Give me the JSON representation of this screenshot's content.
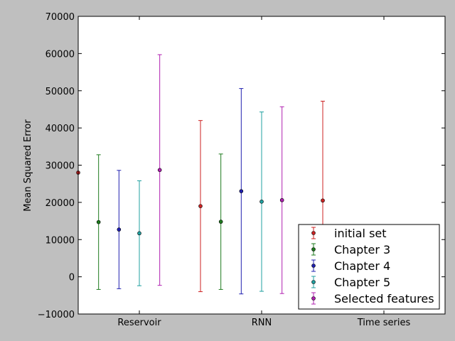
{
  "chart_data": {
    "type": "scatter",
    "title": "",
    "xlabel": "",
    "ylabel": "Mean Squared Error",
    "ylim": [
      -10000,
      70000
    ],
    "yticks": [
      "−10000",
      "0",
      "10000",
      "20000",
      "30000",
      "40000",
      "50000",
      "60000",
      "70000"
    ],
    "ytick_values": [
      -10000,
      0,
      10000,
      20000,
      30000,
      40000,
      50000,
      60000,
      70000
    ],
    "categories": [
      "Reservoir",
      "RNN",
      "Time series"
    ],
    "xlim": [
      0,
      18
    ],
    "legend_position": "lower-right",
    "grid": false,
    "series": [
      {
        "name": "initial set",
        "color": "#cc2222",
        "points": [
          {
            "x": 0,
            "y": 28000,
            "err": null
          },
          {
            "x": 6,
            "y": 19000,
            "err": 23000
          },
          {
            "x": 12,
            "y": 20500,
            "err": 26700
          }
        ]
      },
      {
        "name": "Chapter 3",
        "color": "#1e7b1e",
        "points": [
          {
            "x": 1,
            "y": 14700,
            "err": 18100
          },
          {
            "x": 7,
            "y": 14800,
            "err": 18200
          }
        ]
      },
      {
        "name": "Chapter 4",
        "color": "#2020b0",
        "points": [
          {
            "x": 2,
            "y": 12700,
            "err": 15900
          },
          {
            "x": 8,
            "y": 23000,
            "err": 27600
          }
        ]
      },
      {
        "name": "Chapter 5",
        "color": "#20a0a0",
        "points": [
          {
            "x": 3,
            "y": 11700,
            "err": 14100
          },
          {
            "x": 9,
            "y": 20200,
            "err": 24100
          }
        ]
      },
      {
        "name": "Selected features",
        "color": "#b020b0",
        "points": [
          {
            "x": 4,
            "y": 28700,
            "err": 31000
          },
          {
            "x": 10,
            "y": 20600,
            "err": 25100
          }
        ]
      }
    ]
  }
}
